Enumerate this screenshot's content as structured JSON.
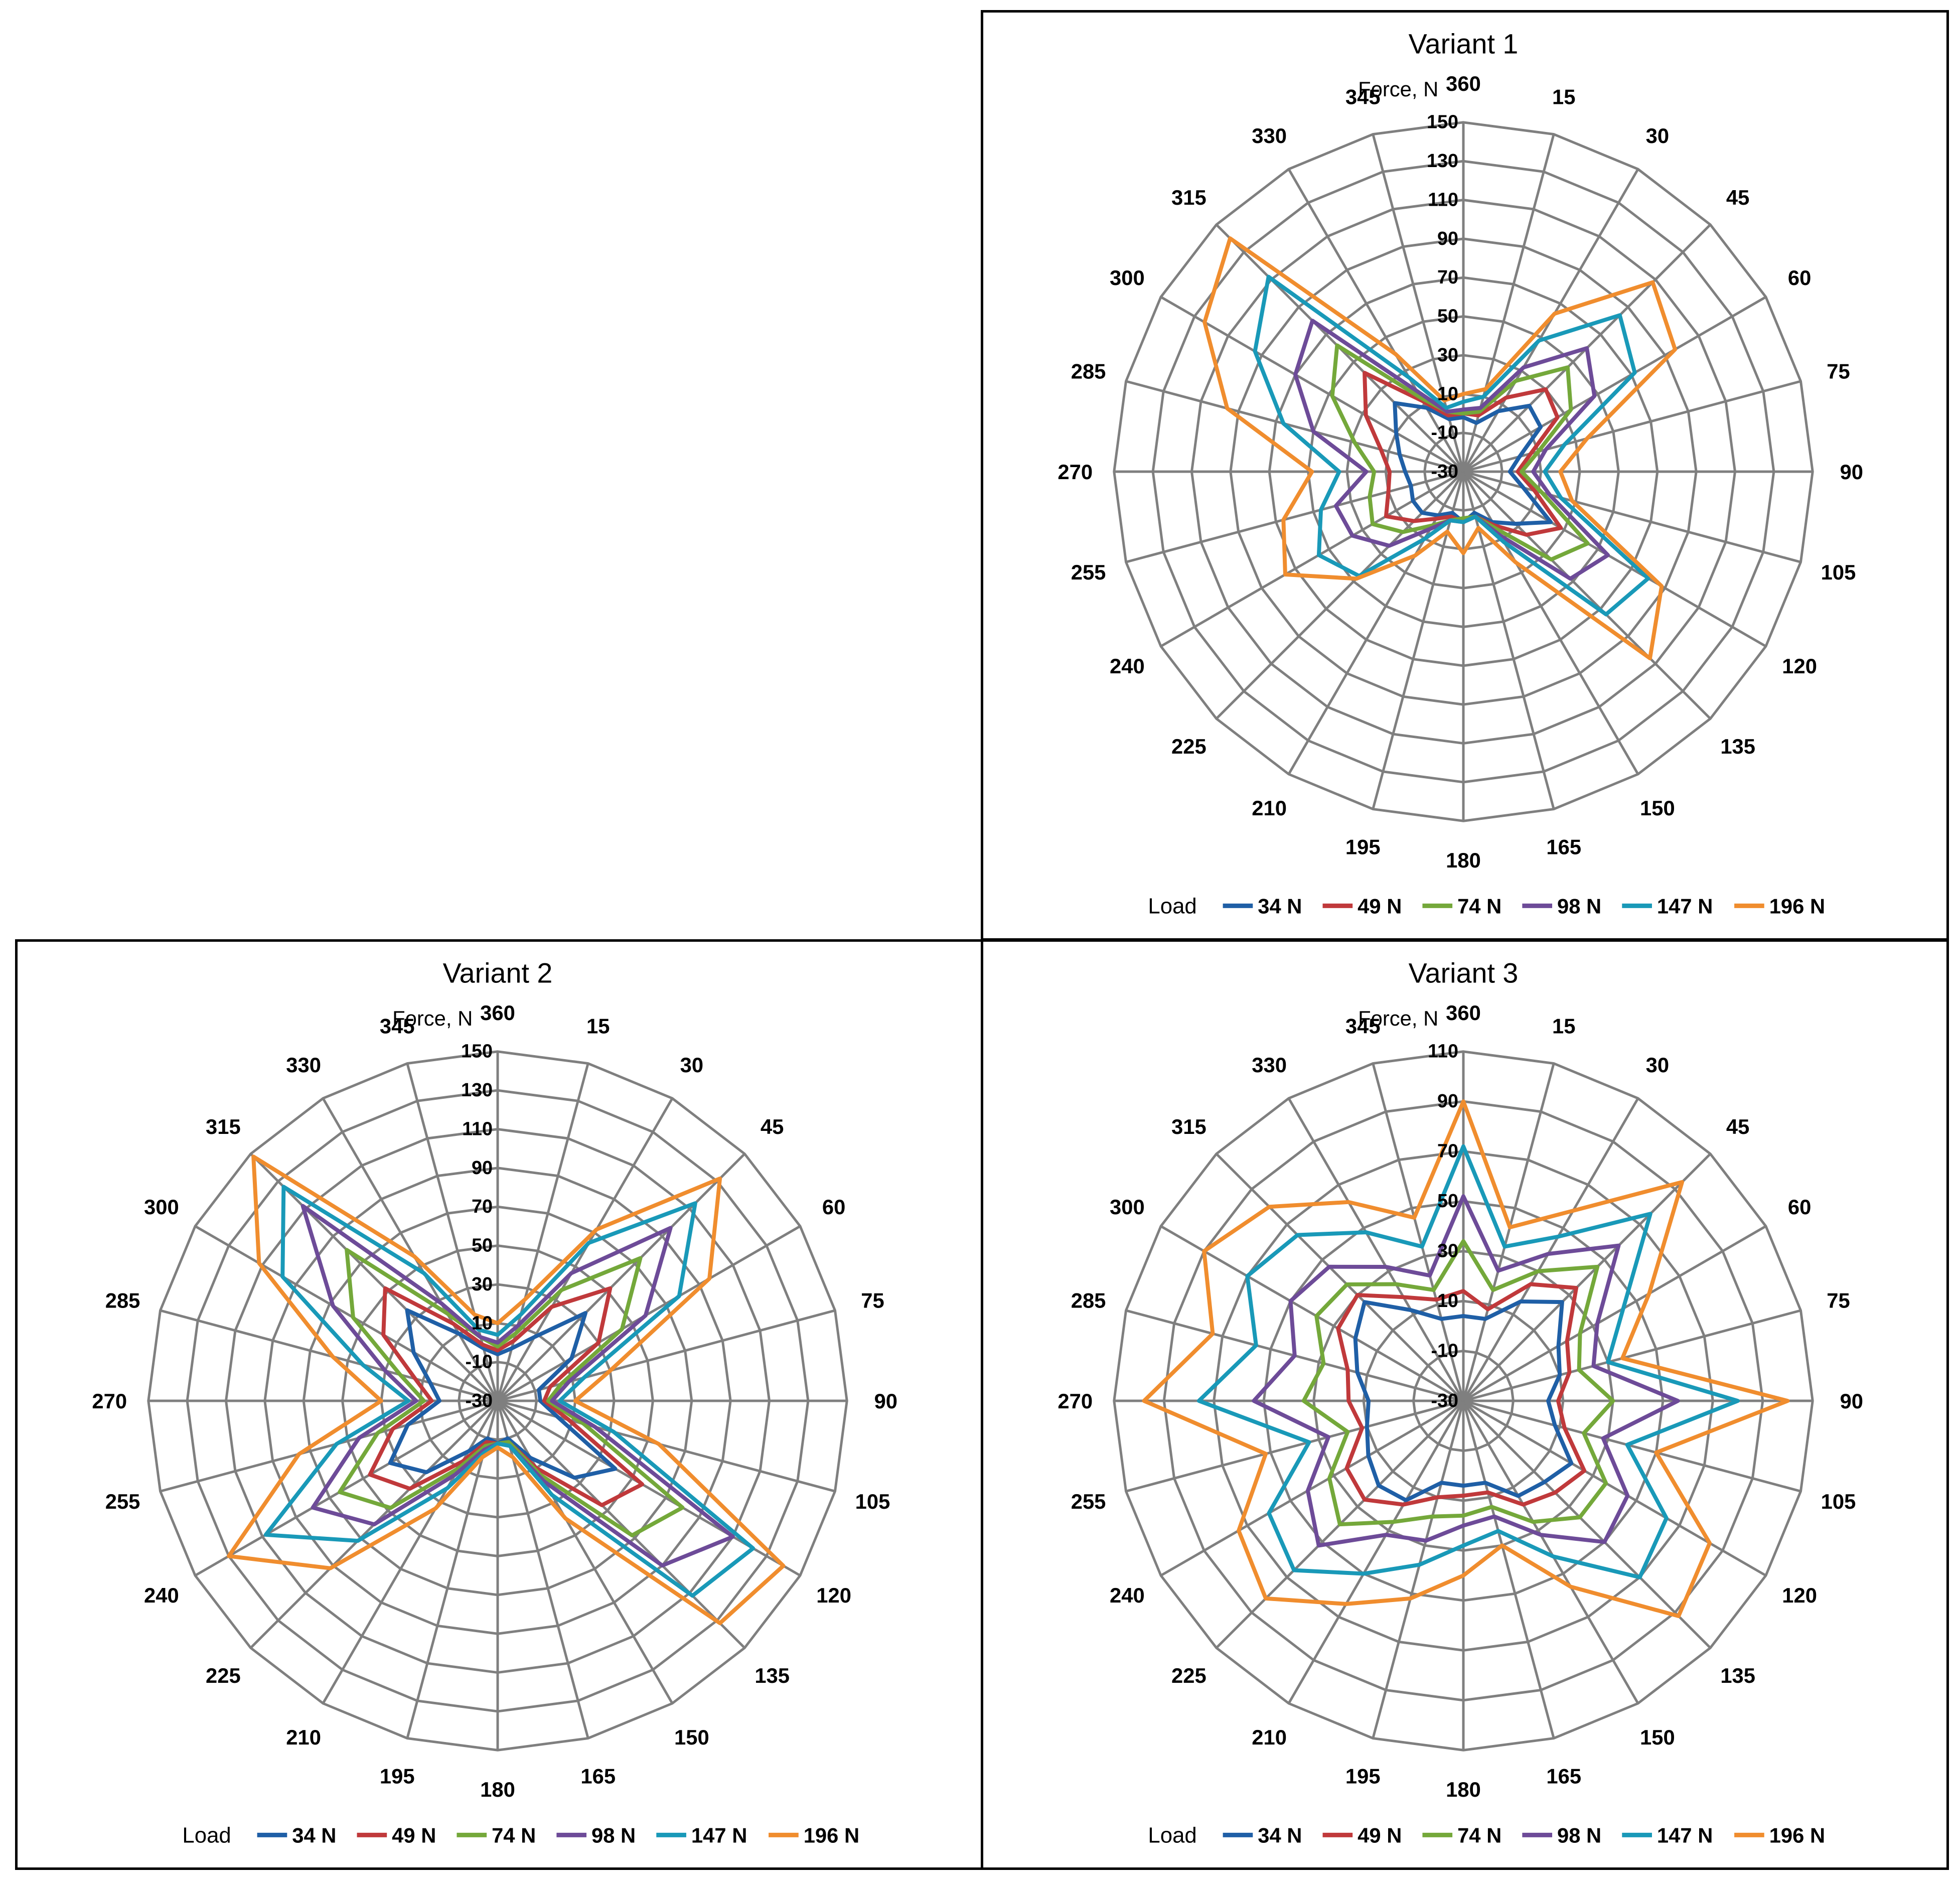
{
  "colors": {
    "s34": "#1f5fa6",
    "s49": "#c0393b",
    "s74": "#74a83a",
    "s98": "#6d4b98",
    "s147": "#1999b8",
    "s196": "#f08d2e",
    "grid": "#7f7f7f"
  },
  "chart_data": [
    {
      "id": "v1",
      "type": "radar",
      "title": "Variant 1",
      "axis_caption": "Force, N",
      "angles": [
        360,
        15,
        30,
        45,
        60,
        75,
        90,
        105,
        120,
        135,
        150,
        165,
        180,
        195,
        210,
        225,
        240,
        255,
        270,
        285,
        300,
        315,
        330,
        345
      ],
      "rlim": [
        -30,
        150
      ],
      "ticks": [
        -30,
        -10,
        10,
        30,
        50,
        70,
        90,
        110,
        130,
        150
      ],
      "legend_title": "Load",
      "legend_position": "bottom",
      "series": [
        {
          "name": "34 N",
          "color_key": "s34",
          "values": [
            -2,
            -4,
            6,
            18,
            16,
            0,
            -6,
            2,
            22,
            8,
            0,
            -8,
            -4,
            -8,
            -4,
            0,
            0,
            -2,
            0,
            4,
            10,
            20,
            8,
            -2
          ]
        },
        {
          "name": "49 N",
          "color_key": "s49",
          "values": [
            0,
            0,
            14,
            30,
            26,
            6,
            -2,
            8,
            28,
            16,
            2,
            -6,
            -4,
            -6,
            -2,
            6,
            16,
            10,
            8,
            14,
            28,
            42,
            12,
            0
          ]
        },
        {
          "name": "74 N",
          "color_key": "s74",
          "values": [
            0,
            2,
            24,
            46,
            34,
            10,
            0,
            12,
            44,
            34,
            4,
            -6,
            -6,
            -4,
            2,
            14,
            24,
            20,
            16,
            28,
            48,
            62,
            14,
            2
          ]
        },
        {
          "name": "98 N",
          "color_key": "s98",
          "values": [
            2,
            4,
            32,
            60,
            48,
            14,
            6,
            16,
            56,
            48,
            8,
            -6,
            -4,
            -4,
            4,
            24,
            36,
            38,
            20,
            50,
            70,
            80,
            18,
            2
          ]
        },
        {
          "name": "147 N",
          "color_key": "s147",
          "values": [
            6,
            10,
            48,
            84,
            72,
            24,
            12,
            22,
            80,
            74,
            12,
            -6,
            -4,
            -4,
            10,
            46,
            56,
            46,
            34,
            66,
            94,
            112,
            26,
            4
          ]
        },
        {
          "name": "196 N",
          "color_key": "s196",
          "values": [
            10,
            14,
            64,
            108,
            96,
            36,
            20,
            28,
            88,
            106,
            24,
            0,
            12,
            2,
            20,
            48,
            76,
            66,
            48,
            96,
            124,
            140,
            40,
            8
          ]
        }
      ]
    },
    {
      "id": "v2",
      "type": "radar",
      "title": "Variant 2",
      "axis_caption": "Force, N",
      "angles": [
        360,
        15,
        30,
        45,
        60,
        75,
        90,
        105,
        120,
        135,
        150,
        165,
        180,
        195,
        210,
        225,
        240,
        255,
        270,
        285,
        300,
        315,
        330,
        345
      ],
      "rlim": [
        -30,
        150
      ],
      "ticks": [
        -30,
        -10,
        10,
        30,
        50,
        70,
        90,
        110,
        130,
        150
      ],
      "legend_title": "Load",
      "legend_position": "bottom",
      "series": [
        {
          "name": "34 N",
          "color_key": "s34",
          "values": [
            -6,
            -2,
            8,
            34,
            14,
            -8,
            -8,
            2,
            40,
            26,
            4,
            -10,
            -8,
            -10,
            0,
            22,
            34,
            18,
            0,
            6,
            20,
            36,
            10,
            -2
          ]
        },
        {
          "name": "49 N",
          "color_key": "s49",
          "values": [
            -4,
            2,
            26,
            52,
            30,
            -2,
            -6,
            8,
            56,
            46,
            10,
            -8,
            -8,
            -8,
            6,
            34,
            46,
            26,
            4,
            14,
            38,
            52,
            16,
            0
          ]
        },
        {
          "name": "74 N",
          "color_key": "s74",
          "values": [
            -2,
            6,
            36,
            74,
            44,
            4,
            -4,
            16,
            80,
            68,
            14,
            -8,
            -8,
            -6,
            10,
            48,
            64,
            34,
            8,
            22,
            56,
            80,
            22,
            4
          ]
        },
        {
          "name": "98 N",
          "color_key": "s98",
          "values": [
            0,
            10,
            46,
            96,
            58,
            8,
            -2,
            22,
            110,
            90,
            18,
            -6,
            -8,
            -4,
            14,
            60,
            80,
            44,
            12,
            30,
            68,
            112,
            28,
            4
          ]
        },
        {
          "name": "147 N",
          "color_key": "s147",
          "values": [
            4,
            16,
            64,
            114,
            78,
            16,
            2,
            32,
            122,
            112,
            26,
            -6,
            -8,
            -2,
            22,
            72,
            108,
            56,
            16,
            42,
            98,
            126,
            46,
            8
          ]
        },
        {
          "name": "196 N",
          "color_key": "s196",
          "values": [
            10,
            24,
            72,
            132,
            96,
            30,
            10,
            56,
            140,
            132,
            40,
            0,
            -6,
            0,
            34,
            92,
            130,
            76,
            30,
            58,
            112,
            148,
            56,
            16
          ]
        }
      ]
    },
    {
      "id": "v3",
      "type": "radar",
      "title": "Variant 3",
      "axis_caption": "Force, N",
      "angles": [
        360,
        15,
        30,
        45,
        60,
        75,
        90,
        105,
        120,
        135,
        150,
        165,
        180,
        195,
        210,
        225,
        240,
        255,
        270,
        285,
        300,
        315,
        330,
        345
      ],
      "rlim": [
        -30,
        110
      ],
      "ticks": [
        -30,
        -10,
        10,
        30,
        50,
        70,
        90,
        110
      ],
      "legend_title": "Load",
      "legend_position": "bottom",
      "series": [
        {
          "name": "34 N",
          "color_key": "s34",
          "values": [
            4,
            4,
            16,
            26,
            14,
            10,
            4,
            8,
            20,
            16,
            14,
            4,
            4,
            4,
            16,
            18,
            14,
            10,
            8,
            14,
            20,
            26,
            12,
            4
          ]
        },
        {
          "name": "49 N",
          "color_key": "s49",
          "values": [
            14,
            8,
            24,
            34,
            18,
            14,
            8,
            12,
            26,
            22,
            18,
            8,
            8,
            10,
            18,
            26,
            24,
            12,
            16,
            18,
            28,
            30,
            18,
            12
          ]
        },
        {
          "name": "74 N",
          "color_key": "s74",
          "values": [
            34,
            16,
            30,
            46,
            24,
            18,
            30,
            20,
            36,
            36,
            26,
            14,
            16,
            18,
            26,
            40,
            32,
            18,
            34,
            28,
            38,
            36,
            24,
            16
          ]
        },
        {
          "name": "98 N",
          "color_key": "s98",
          "values": [
            52,
            24,
            38,
            58,
            32,
            24,
            56,
            28,
            46,
            50,
            32,
            18,
            20,
            28,
            32,
            52,
            42,
            26,
            54,
            40,
            50,
            46,
            32,
            22
          ]
        },
        {
          "name": "147 N",
          "color_key": "s147",
          "values": [
            72,
            34,
            46,
            76,
            44,
            30,
            80,
            38,
            64,
            70,
            42,
            24,
            28,
            38,
            50,
            66,
            60,
            34,
            76,
            56,
            70,
            64,
            48,
            34
          ]
        },
        {
          "name": "196 N",
          "color_key": "s196",
          "values": [
            90,
            42,
            58,
            94,
            56,
            36,
            100,
            50,
            84,
            92,
            56,
            30,
            40,
            52,
            64,
            82,
            74,
            52,
            98,
            74,
            90,
            80,
            62,
            46
          ]
        }
      ]
    }
  ]
}
